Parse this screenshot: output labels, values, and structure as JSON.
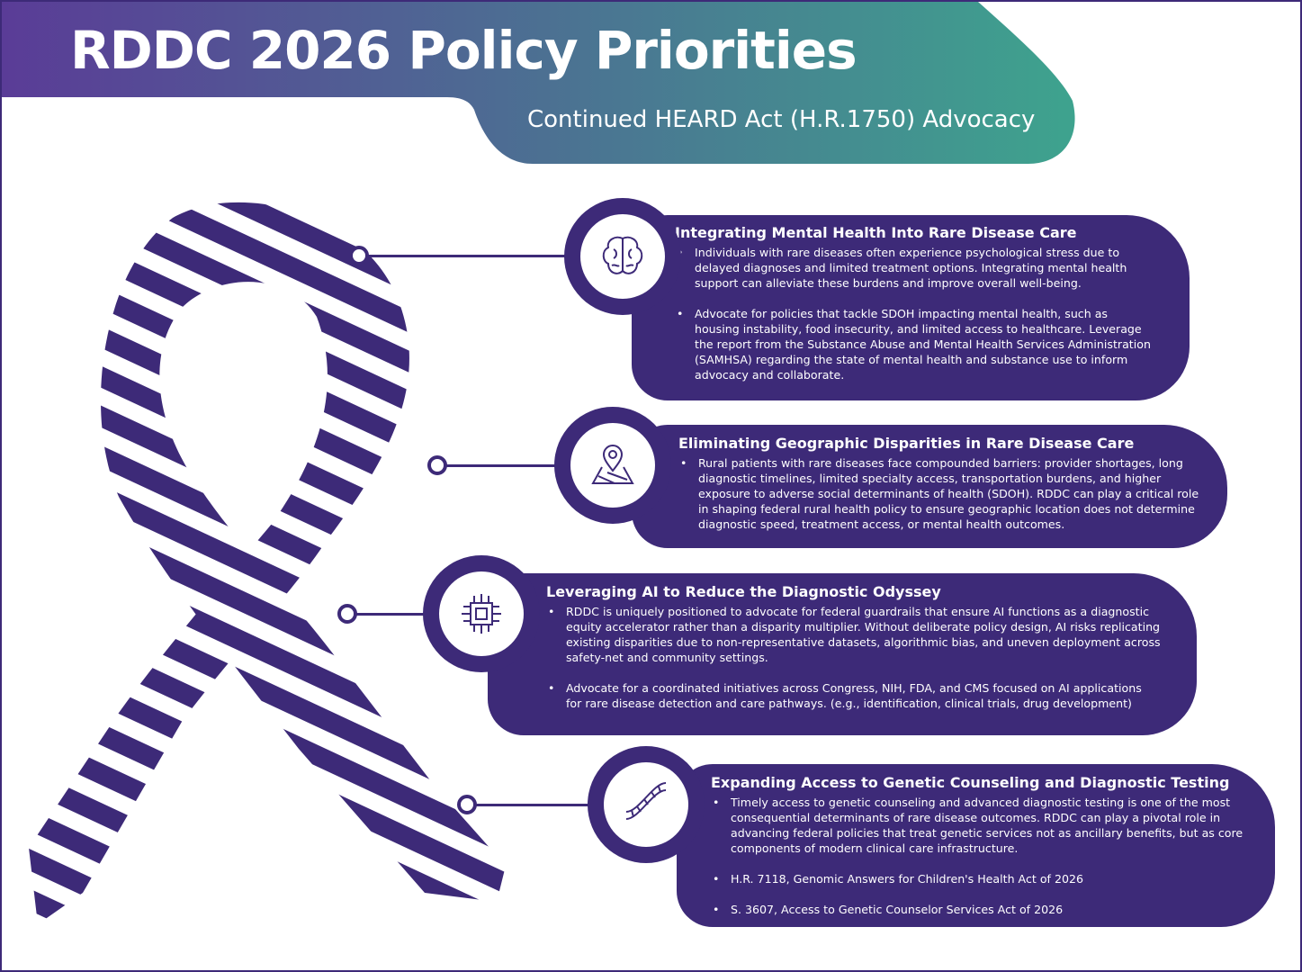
{
  "header": {
    "title": "RDDC 2026 Policy Priorities",
    "subtitle": "Continued HEARD Act (H.R.1750) Advocacy"
  },
  "colors": {
    "primary": "#3d2a78",
    "gradient_start": "#5a3c97",
    "gradient_end": "#3ea38e"
  },
  "sections": [
    {
      "icon": "brain-icon",
      "title": "Integrating Mental Health Into Rare Disease Care",
      "bullets": [
        "Individuals with rare diseases often experience psychological stress due to delayed diagnoses and limited treatment options. Integrating mental health support can alleviate these burdens and improve overall well-being.",
        "Advocate for policies that tackle SDOH impacting mental health, such as housing instability, food insecurity, and limited access to healthcare. Leverage the report from the Substance Abuse and Mental Health Services Administration (SAMHSA)  regarding the state of mental health and substance use to inform advocacy and collaborate."
      ]
    },
    {
      "icon": "map-pin-icon",
      "title": "Eliminating Geographic Disparities in Rare Disease Care",
      "bullets": [
        "Rural patients with rare diseases face compounded barriers: provider shortages, long diagnostic timelines, limited specialty access, transportation burdens, and higher exposure to adverse social determinants of health (SDOH). RDDC can play a critical role in shaping federal rural health policy to ensure geographic location does not determine diagnostic speed, treatment access, or mental health outcomes."
      ]
    },
    {
      "icon": "ai-chip-icon",
      "title": "Leveraging AI to Reduce the Diagnostic Odyssey",
      "bullets": [
        "RDDC is uniquely positioned to advocate for federal guardrails that ensure AI functions as a diagnostic equity accelerator rather than a disparity multiplier. Without deliberate policy design, AI risks replicating existing disparities due to non-representative datasets, algorithmic bias, and uneven deployment across safety-net and community settings.",
        "Advocate for a coordinated initiatives across Congress, NIH, FDA, and CMS focused on AI applications for rare disease detection and care pathways. (e.g., identification, clinical trials, drug development)"
      ]
    },
    {
      "icon": "dna-icon",
      "title": "Expanding Access to Genetic Counseling and Diagnostic Testing",
      "bullets": [
        "Timely access to genetic counseling and advanced diagnostic testing is one of the most consequential determinants of rare disease outcomes. RDDC can play a pivotal role in advancing federal policies that treat genetic services not as ancillary benefits, but as core components of modern clinical care infrastructure.",
        "H.R. 7118, Genomic Answers for Children's Health Act of 2026",
        "S. 3607, Access to Genetic Counselor Services Act of 2026"
      ]
    }
  ]
}
